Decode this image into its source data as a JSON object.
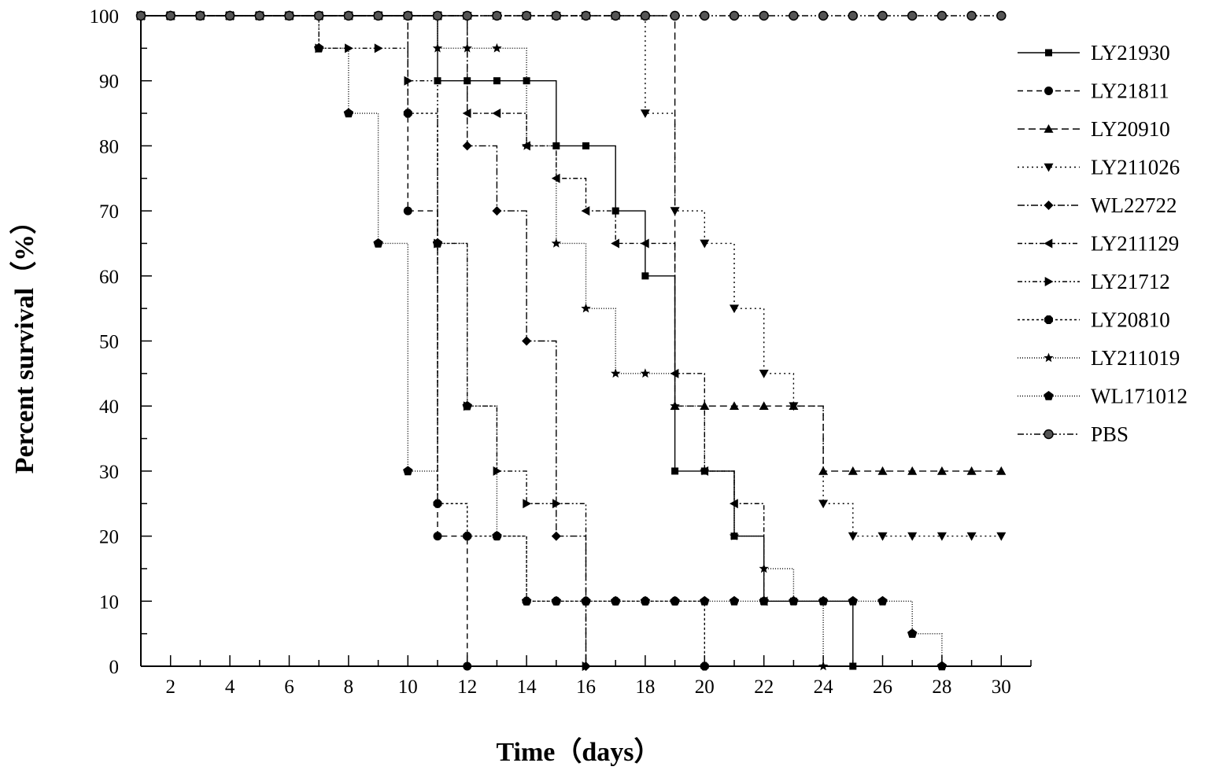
{
  "chart_data": {
    "type": "line",
    "step": true,
    "title": "",
    "xlabel": "Time（days）",
    "ylabel": "Percent survival（%）",
    "xlim": [
      1,
      31
    ],
    "ylim": [
      0,
      100
    ],
    "xticks": [
      2,
      4,
      6,
      8,
      10,
      12,
      14,
      16,
      18,
      20,
      22,
      24,
      26,
      28,
      30
    ],
    "yticks": [
      0,
      10,
      20,
      30,
      40,
      50,
      60,
      70,
      80,
      90,
      100
    ],
    "grid": false,
    "legend_position": "right",
    "series": [
      {
        "name": "LY21930",
        "marker": "square",
        "dash": "",
        "x": [
          1,
          2,
          3,
          4,
          5,
          6,
          7,
          8,
          9,
          10,
          11,
          12,
          13,
          14,
          15,
          16,
          17,
          18,
          19,
          20,
          21,
          22,
          23,
          24,
          25
        ],
        "y": [
          100,
          100,
          100,
          100,
          100,
          100,
          100,
          100,
          100,
          100,
          90,
          90,
          90,
          90,
          80,
          80,
          70,
          60,
          30,
          30,
          20,
          10,
          10,
          10,
          0
        ]
      },
      {
        "name": "LY21811",
        "marker": "circle",
        "dash": "7,5",
        "x": [
          1,
          2,
          3,
          4,
          5,
          6,
          7,
          8,
          9,
          10,
          11,
          12
        ],
        "y": [
          100,
          100,
          100,
          100,
          100,
          100,
          100,
          100,
          100,
          70,
          20,
          0
        ]
      },
      {
        "name": "LY20910",
        "marker": "triangle-up",
        "dash": "9,5",
        "x": [
          1,
          2,
          3,
          4,
          5,
          6,
          7,
          8,
          9,
          10,
          11,
          12,
          13,
          14,
          15,
          16,
          17,
          18,
          19,
          20,
          21,
          22,
          23,
          24,
          25,
          26,
          27,
          28,
          29,
          30
        ],
        "y": [
          100,
          100,
          100,
          100,
          100,
          100,
          100,
          100,
          100,
          100,
          100,
          100,
          100,
          100,
          100,
          100,
          100,
          100,
          40,
          40,
          40,
          40,
          40,
          30,
          30,
          30,
          30,
          30,
          30,
          30
        ]
      },
      {
        "name": "LY211026",
        "marker": "triangle-down",
        "dash": "2,4",
        "x": [
          1,
          2,
          3,
          4,
          5,
          6,
          7,
          8,
          9,
          10,
          11,
          12,
          13,
          14,
          15,
          16,
          17,
          18,
          19,
          20,
          21,
          22,
          23,
          24,
          25,
          26,
          27,
          28,
          29,
          30
        ],
        "y": [
          100,
          100,
          100,
          100,
          100,
          100,
          100,
          100,
          100,
          100,
          100,
          100,
          100,
          100,
          100,
          100,
          100,
          85,
          70,
          65,
          55,
          45,
          40,
          25,
          20,
          20,
          20,
          20,
          20,
          20
        ]
      },
      {
        "name": "WL22722",
        "marker": "diamond",
        "dash": "9,3,2,3",
        "x": [
          1,
          2,
          3,
          4,
          5,
          6,
          7,
          8,
          9,
          10,
          11,
          12,
          13,
          14,
          15,
          16
        ],
        "y": [
          100,
          100,
          100,
          100,
          100,
          100,
          100,
          100,
          100,
          100,
          100,
          80,
          70,
          50,
          20,
          0
        ]
      },
      {
        "name": "LY211129",
        "marker": "triangle-left",
        "dash": "6,3,2,3",
        "x": [
          1,
          2,
          3,
          4,
          5,
          6,
          7,
          8,
          9,
          10,
          11,
          12,
          13,
          14,
          15,
          16,
          17,
          18,
          19,
          20,
          21,
          22
        ],
        "y": [
          100,
          100,
          100,
          100,
          100,
          100,
          100,
          100,
          100,
          100,
          100,
          85,
          85,
          80,
          75,
          70,
          65,
          65,
          45,
          30,
          25,
          10
        ]
      },
      {
        "name": "LY21712",
        "marker": "triangle-right",
        "dash": "6,3,2,3,2,3",
        "x": [
          1,
          2,
          3,
          4,
          5,
          6,
          7,
          8,
          9,
          10,
          11,
          12,
          13,
          14,
          15,
          16
        ],
        "y": [
          100,
          100,
          100,
          100,
          100,
          100,
          95,
          95,
          95,
          90,
          65,
          40,
          30,
          25,
          25,
          0
        ]
      },
      {
        "name": "LY20810",
        "marker": "octagon",
        "dash": "3,3",
        "x": [
          1,
          2,
          3,
          4,
          5,
          6,
          7,
          8,
          9,
          10,
          11,
          12,
          13,
          14,
          15,
          16,
          17,
          18,
          19,
          20
        ],
        "y": [
          100,
          100,
          100,
          100,
          100,
          100,
          100,
          100,
          100,
          85,
          25,
          20,
          20,
          10,
          10,
          10,
          10,
          10,
          10,
          0
        ]
      },
      {
        "name": "LY211019",
        "marker": "star",
        "dash": "1,2",
        "x": [
          1,
          2,
          3,
          4,
          5,
          6,
          7,
          8,
          9,
          10,
          11,
          12,
          13,
          14,
          15,
          16,
          17,
          18,
          19,
          20,
          21,
          22,
          23,
          24
        ],
        "y": [
          100,
          100,
          100,
          100,
          100,
          100,
          100,
          100,
          100,
          100,
          95,
          95,
          95,
          80,
          65,
          55,
          45,
          45,
          40,
          30,
          20,
          15,
          10,
          0
        ]
      },
      {
        "name": "WL171012",
        "marker": "pentagon",
        "dash": "1,2",
        "x": [
          1,
          2,
          3,
          4,
          5,
          6,
          7,
          8,
          9,
          10,
          11,
          12,
          13,
          14,
          15,
          16,
          17,
          18,
          19,
          20,
          21,
          22,
          23,
          24,
          25,
          26,
          27,
          28
        ],
        "y": [
          100,
          100,
          100,
          100,
          100,
          100,
          95,
          85,
          65,
          30,
          65,
          40,
          20,
          10,
          10,
          10,
          10,
          10,
          10,
          10,
          10,
          10,
          10,
          10,
          10,
          10,
          5,
          0
        ]
      },
      {
        "name": "PBS",
        "marker": "ring",
        "dash": "8,3,2,3,2,3",
        "x": [
          1,
          2,
          3,
          4,
          5,
          6,
          7,
          8,
          9,
          10,
          11,
          12,
          13,
          14,
          15,
          16,
          17,
          18,
          19,
          20,
          21,
          22,
          23,
          24,
          25,
          26,
          27,
          28,
          29,
          30
        ],
        "y": [
          100,
          100,
          100,
          100,
          100,
          100,
          100,
          100,
          100,
          100,
          100,
          100,
          100,
          100,
          100,
          100,
          100,
          100,
          100,
          100,
          100,
          100,
          100,
          100,
          100,
          100,
          100,
          100,
          100,
          100
        ]
      }
    ]
  }
}
